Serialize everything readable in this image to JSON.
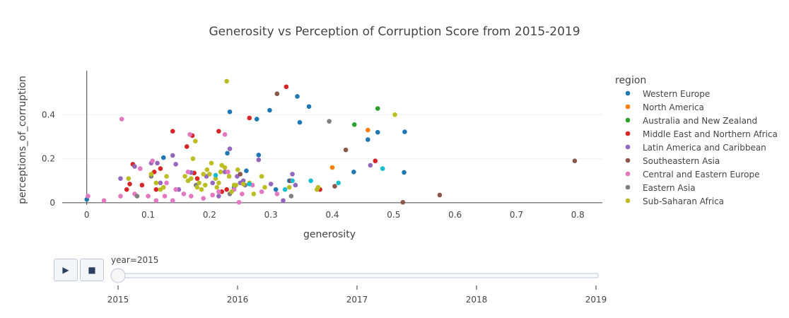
{
  "chart_data": {
    "type": "scatter",
    "title": "Generosity vs Perception of Corruption Score from 2015-2019",
    "xlabel": "generosity",
    "ylabel": "perceptions_of_corruption",
    "xlim": [
      -0.04,
      0.84
    ],
    "ylim": [
      -0.01,
      0.6
    ],
    "xticks": [
      "0",
      "0.1",
      "0.2",
      "0.3",
      "0.4",
      "0.5",
      "0.6",
      "0.7",
      "0.8"
    ],
    "yticks": [
      "0",
      "0.2",
      "0.4"
    ],
    "grid": true,
    "legend": {
      "title": "region",
      "position": "right"
    },
    "series": [
      {
        "name": "Western Europe",
        "color": "#1f77b4",
        "points": [
          [
            0.0,
            0.015
          ],
          [
            0.125,
            0.205
          ],
          [
            0.233,
            0.413
          ],
          [
            0.229,
            0.225
          ],
          [
            0.26,
            0.145
          ],
          [
            0.28,
            0.217
          ],
          [
            0.277,
            0.38
          ],
          [
            0.298,
            0.42
          ],
          [
            0.343,
            0.483
          ],
          [
            0.347,
            0.365
          ],
          [
            0.362,
            0.437
          ],
          [
            0.435,
            0.14
          ],
          [
            0.458,
            0.287
          ],
          [
            0.474,
            0.32
          ],
          [
            0.518,
            0.322
          ],
          [
            0.517,
            0.138
          ],
          [
            0.308,
            0.06
          ],
          [
            0.33,
            0.1
          ],
          [
            0.24,
            0.07
          ]
        ]
      },
      {
        "name": "North America",
        "color": "#ff7f0e",
        "points": [
          [
            0.458,
            0.33
          ],
          [
            0.4,
            0.16
          ]
        ]
      },
      {
        "name": "Australia and New Zealand",
        "color": "#2ca02c",
        "points": [
          [
            0.474,
            0.428
          ],
          [
            0.436,
            0.355
          ]
        ]
      },
      {
        "name": "Middle East and Northern Africa",
        "color": "#d62728",
        "points": [
          [
            0.065,
            0.06
          ],
          [
            0.07,
            0.085
          ],
          [
            0.075,
            0.175
          ],
          [
            0.09,
            0.08
          ],
          [
            0.11,
            0.14
          ],
          [
            0.113,
            0.06
          ],
          [
            0.12,
            0.155
          ],
          [
            0.14,
            0.325
          ],
          [
            0.163,
            0.255
          ],
          [
            0.172,
            0.305
          ],
          [
            0.18,
            0.11
          ],
          [
            0.175,
            0.135
          ],
          [
            0.215,
            0.325
          ],
          [
            0.22,
            0.05
          ],
          [
            0.228,
            0.06
          ],
          [
            0.265,
            0.385
          ],
          [
            0.325,
            0.527
          ],
          [
            0.333,
            0.1
          ],
          [
            0.38,
            0.06
          ],
          [
            0.47,
            0.19
          ]
        ]
      },
      {
        "name": "Latin America and Caribbean",
        "color": "#9467bd",
        "points": [
          [
            0.055,
            0.11
          ],
          [
            0.078,
            0.165
          ],
          [
            0.105,
            0.18
          ],
          [
            0.115,
            0.18
          ],
          [
            0.12,
            0.09
          ],
          [
            0.14,
            0.215
          ],
          [
            0.145,
            0.175
          ],
          [
            0.15,
            0.06
          ],
          [
            0.17,
            0.137
          ],
          [
            0.195,
            0.12
          ],
          [
            0.205,
            0.09
          ],
          [
            0.215,
            0.03
          ],
          [
            0.225,
            0.14
          ],
          [
            0.233,
            0.245
          ],
          [
            0.245,
            0.12
          ],
          [
            0.25,
            0.09
          ],
          [
            0.255,
            0.1
          ],
          [
            0.28,
            0.195
          ],
          [
            0.3,
            0.085
          ],
          [
            0.32,
            0.01
          ],
          [
            0.335,
            0.13
          ],
          [
            0.34,
            0.08
          ],
          [
            0.462,
            0.17
          ]
        ]
      },
      {
        "name": "Southeastern Asia",
        "color": "#8c564b",
        "points": [
          [
            0.31,
            0.495
          ],
          [
            0.422,
            0.24
          ],
          [
            0.404,
            0.075
          ],
          [
            0.795,
            0.19
          ],
          [
            0.575,
            0.035
          ],
          [
            0.515,
            0.002
          ],
          [
            0.25,
            0.13
          ]
        ]
      },
      {
        "name": "Central and Eastern Europe",
        "color": "#e377c2",
        "points": [
          [
            0.002,
            0.03
          ],
          [
            0.028,
            0.01
          ],
          [
            0.055,
            0.03
          ],
          [
            0.057,
            0.38
          ],
          [
            0.078,
            0.04
          ],
          [
            0.087,
            0.155
          ],
          [
            0.1,
            0.03
          ],
          [
            0.107,
            0.19
          ],
          [
            0.113,
            0.01
          ],
          [
            0.127,
            0.03
          ],
          [
            0.13,
            0.09
          ],
          [
            0.14,
            0.01
          ],
          [
            0.145,
            0.06
          ],
          [
            0.158,
            0.04
          ],
          [
            0.165,
            0.14
          ],
          [
            0.168,
            0.31
          ],
          [
            0.17,
            0.03
          ],
          [
            0.19,
            0.02
          ],
          [
            0.205,
            0.035
          ],
          [
            0.215,
            0.05
          ],
          [
            0.225,
            0.31
          ],
          [
            0.23,
            0.14
          ],
          [
            0.24,
            0.06
          ],
          [
            0.248,
            0.002
          ],
          [
            0.253,
            0.04
          ],
          [
            0.27,
            0.08
          ],
          [
            0.285,
            0.05
          ],
          [
            0.31,
            0.04
          ]
        ]
      },
      {
        "name": "Eastern Asia",
        "color": "#7f7f7f",
        "points": [
          [
            0.082,
            0.03
          ],
          [
            0.105,
            0.12
          ],
          [
            0.178,
            0.08
          ],
          [
            0.233,
            0.04
          ],
          [
            0.395,
            0.37
          ],
          [
            0.333,
            0.03
          ],
          [
            0.258,
            0.08
          ]
        ]
      },
      {
        "name": "Sub-Saharan Africa",
        "color": "#bcbd22",
        "points": [
          [
            0.068,
            0.11
          ],
          [
            0.105,
            0.13
          ],
          [
            0.113,
            0.09
          ],
          [
            0.12,
            0.06
          ],
          [
            0.125,
            0.07
          ],
          [
            0.13,
            0.12
          ],
          [
            0.16,
            0.12
          ],
          [
            0.165,
            0.1
          ],
          [
            0.17,
            0.11
          ],
          [
            0.173,
            0.2
          ],
          [
            0.177,
            0.28
          ],
          [
            0.18,
            0.07
          ],
          [
            0.183,
            0.09
          ],
          [
            0.187,
            0.06
          ],
          [
            0.19,
            0.13
          ],
          [
            0.193,
            0.08
          ],
          [
            0.196,
            0.15
          ],
          [
            0.2,
            0.13
          ],
          [
            0.203,
            0.18
          ],
          [
            0.21,
            0.11
          ],
          [
            0.212,
            0.07
          ],
          [
            0.215,
            0.09
          ],
          [
            0.218,
            0.14
          ],
          [
            0.22,
            0.17
          ],
          [
            0.225,
            0.16
          ],
          [
            0.228,
            0.552
          ],
          [
            0.232,
            0.12
          ],
          [
            0.236,
            0.05
          ],
          [
            0.24,
            0.08
          ],
          [
            0.243,
            0.08
          ],
          [
            0.246,
            0.15
          ],
          [
            0.255,
            0.085
          ],
          [
            0.265,
            0.09
          ],
          [
            0.272,
            0.04
          ],
          [
            0.285,
            0.12
          ],
          [
            0.29,
            0.07
          ],
          [
            0.33,
            0.07
          ],
          [
            0.375,
            0.06
          ],
          [
            0.377,
            0.07
          ],
          [
            0.502,
            0.4
          ]
        ]
      },
      {
        "name": "",
        "color": "#17becf",
        "points": [
          [
            0.265,
            0.085
          ],
          [
            0.323,
            0.06
          ],
          [
            0.335,
            0.1
          ],
          [
            0.365,
            0.1
          ],
          [
            0.41,
            0.09
          ],
          [
            0.482,
            0.155
          ],
          [
            0.21,
            0.125
          ]
        ]
      }
    ]
  },
  "slider": {
    "current_label": "year=2015",
    "ticks": [
      "2015",
      "2016",
      "2017",
      "2018",
      "2019"
    ],
    "value_index": 0
  },
  "controls": {
    "play_symbol": "▶",
    "stop_symbol": "■"
  }
}
